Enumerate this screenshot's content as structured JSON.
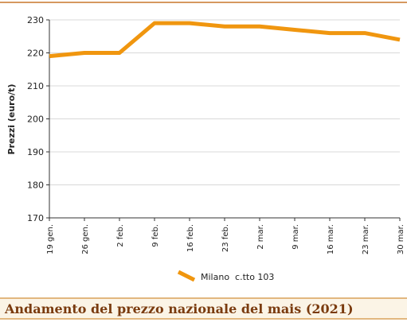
{
  "chart_data": {
    "type": "line",
    "title": "Andamento del prezzo nazionale del mais (2021)",
    "y_label": "Prezzi (euro/t)",
    "categories": [
      "19 gen.",
      "26 gen.",
      "2 feb.",
      "9 feb.",
      "16 feb.",
      "23 feb.",
      "2 mar.",
      "9 mar.",
      "16 mar.",
      "23 mar.",
      "30 mar."
    ],
    "series": [
      {
        "name": "Milano  c.tto 103",
        "color": "#f0960f",
        "values": [
          219,
          220,
          220,
          229,
          229,
          228,
          228,
          227,
          226,
          226,
          224
        ]
      }
    ],
    "ylim": [
      170,
      230
    ],
    "yticks": [
      170,
      180,
      190,
      200,
      210,
      220,
      230
    ],
    "grid": true
  }
}
